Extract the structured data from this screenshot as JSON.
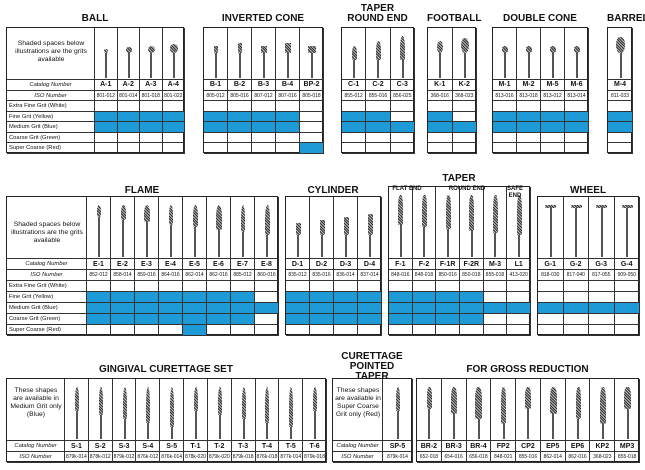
{
  "row_labels": {
    "catalog": "Catalog Number",
    "iso": "ISO Number",
    "grits": [
      "Extra Fine Grit (White)",
      "Fine Grit (Yellow)",
      "Medium Grit (Blue)",
      "Coarse Grit (Green)",
      "Super Coarse (Red)"
    ]
  },
  "notes": {
    "shaded": "Shaded spaces below illustrations are the grits available",
    "medium_only": "These shapes are available in Medium Grit only (Blue)",
    "super_coarse_only": "These shapes are available in Super Coarse Grit only (Red)"
  },
  "colors": {
    "shade": "#1e9bd7",
    "border": "#222222"
  },
  "groups": {
    "ball": {
      "title": "BALL",
      "codes": [
        "A-1",
        "A-2",
        "A-3",
        "A-4"
      ],
      "iso": [
        "801-012",
        "801-014",
        "801-018",
        "801-022"
      ],
      "grits": [
        [
          0,
          0,
          0,
          0
        ],
        [
          1,
          1,
          1,
          1
        ],
        [
          1,
          1,
          1,
          1
        ],
        [
          0,
          0,
          0,
          0
        ],
        [
          0,
          0,
          0,
          0
        ]
      ]
    },
    "inverted_cone": {
      "title": "INVERTED CONE",
      "codes": [
        "B-1",
        "B-2",
        "B-3",
        "B-4",
        "BP-2"
      ],
      "iso": [
        "805-012",
        "805-016",
        "807-012",
        "807-016",
        "805-018"
      ],
      "grits": [
        [
          0,
          0,
          0,
          0,
          0
        ],
        [
          1,
          1,
          1,
          1,
          0
        ],
        [
          1,
          1,
          1,
          1,
          0
        ],
        [
          0,
          0,
          0,
          0,
          0
        ],
        [
          0,
          0,
          0,
          0,
          1
        ]
      ]
    },
    "taper_round_end": {
      "title": "TAPER ROUND END",
      "codes": [
        "C-1",
        "C-2",
        "C-3"
      ],
      "iso": [
        "855-012",
        "855-016",
        "856-025"
      ],
      "grits": [
        [
          0,
          0,
          0
        ],
        [
          1,
          1,
          0
        ],
        [
          1,
          1,
          1
        ],
        [
          0,
          0,
          0
        ],
        [
          0,
          0,
          0
        ]
      ]
    },
    "football": {
      "title": "FOOTBALL",
      "codes": [
        "K-1",
        "K-2"
      ],
      "iso": [
        "368-016",
        "368-023"
      ],
      "grits": [
        [
          0,
          0
        ],
        [
          1,
          0
        ],
        [
          1,
          1
        ],
        [
          0,
          0
        ],
        [
          0,
          0
        ]
      ]
    },
    "double_cone": {
      "title": "DOUBLE CONE",
      "codes": [
        "M-1",
        "M-2",
        "M-5",
        "M-6"
      ],
      "iso": [
        "813-016",
        "813-018",
        "813-012",
        "813-014"
      ],
      "grits": [
        [
          0,
          0,
          0,
          0
        ],
        [
          1,
          1,
          1,
          1
        ],
        [
          1,
          1,
          1,
          1
        ],
        [
          0,
          0,
          0,
          0
        ],
        [
          0,
          0,
          0,
          0
        ]
      ]
    },
    "barrel": {
      "title": "BARREL",
      "codes": [
        "M-4"
      ],
      "iso": [
        "811-033"
      ],
      "grits": [
        [
          0
        ],
        [
          1
        ],
        [
          1
        ],
        [
          0
        ],
        [
          0
        ]
      ]
    },
    "flame": {
      "title": "FLAME",
      "codes": [
        "E-1",
        "E-2",
        "E-3",
        "E-4",
        "E-5",
        "E-6",
        "E-7",
        "E-8"
      ],
      "iso": [
        "852-012",
        "858-014",
        "859-016",
        "864-016",
        "862-014",
        "862-016",
        "885-012",
        "860-016"
      ],
      "grits": [
        [
          0,
          0,
          0,
          0,
          0,
          0,
          0,
          0
        ],
        [
          1,
          1,
          1,
          1,
          1,
          1,
          1,
          0
        ],
        [
          1,
          1,
          1,
          1,
          1,
          1,
          1,
          1
        ],
        [
          1,
          1,
          1,
          1,
          1,
          1,
          1,
          0
        ],
        [
          0,
          0,
          0,
          0,
          1,
          0,
          0,
          0
        ]
      ]
    },
    "cylinder": {
      "title": "CYLINDER",
      "codes": [
        "D-1",
        "D-2",
        "D-3",
        "D-4"
      ],
      "iso": [
        "835-012",
        "835-016",
        "836-014",
        "837-014"
      ],
      "grits": [
        [
          0,
          0,
          0,
          0
        ],
        [
          1,
          1,
          1,
          1
        ],
        [
          1,
          1,
          1,
          1
        ],
        [
          1,
          1,
          1,
          1
        ],
        [
          0,
          0,
          0,
          0
        ]
      ]
    },
    "taper": {
      "title": "TAPER",
      "sub_flat": "FLAT END",
      "sub_round": "ROUND END",
      "sub_safe": "SAFE END",
      "codes": [
        "F-1",
        "F-2",
        "F-1R",
        "F-2R",
        "M-3",
        "L1"
      ],
      "iso": [
        "848-016",
        "848-018",
        "850-016",
        "850-018",
        "855-018",
        "413-020"
      ],
      "grits": [
        [
          0,
          0,
          0,
          0,
          0,
          0
        ],
        [
          1,
          1,
          1,
          1,
          0,
          0
        ],
        [
          1,
          1,
          1,
          1,
          1,
          1
        ],
        [
          1,
          1,
          1,
          1,
          0,
          0
        ],
        [
          0,
          0,
          0,
          0,
          0,
          0
        ]
      ]
    },
    "wheel": {
      "title": "WHEEL",
      "codes": [
        "G-1",
        "G-2",
        "G-3",
        "G-4"
      ],
      "iso": [
        "818-030",
        "817-040",
        "817-055",
        "909-050"
      ],
      "grits": [
        [
          0,
          0,
          0,
          0
        ],
        [
          0,
          0,
          0,
          0
        ],
        [
          1,
          1,
          1,
          1
        ],
        [
          0,
          0,
          0,
          0
        ],
        [
          0,
          0,
          0,
          0
        ]
      ]
    },
    "gingival": {
      "title": "GINGIVAL CURETTAGE SET",
      "codes": [
        "S-1",
        "S-2",
        "S-3",
        "S-4",
        "S-5",
        "T-1",
        "T-2",
        "T-3",
        "T-4",
        "T-5",
        "T-6"
      ],
      "iso": [
        "879k-014",
        "878k-012",
        "879k-012",
        "876k-012",
        "876k-014",
        "878k-020",
        "879k-020",
        "879k-018",
        "876k-018",
        "877k-014",
        "879k-018"
      ]
    },
    "curettage": {
      "title": "CURETTAGE POINTED TAPER",
      "codes": [
        "SP-5"
      ],
      "iso": [
        "879k-014"
      ]
    },
    "gross": {
      "title": "FOR GROSS REDUCTION",
      "codes": [
        "BR-2",
        "BR-3",
        "BR-4",
        "FP2",
        "CP2",
        "EP5",
        "EP6",
        "KP2",
        "MP3"
      ],
      "iso": [
        "652-018",
        "654-016",
        "656-018",
        "848-021",
        "855-016",
        "862-014",
        "862-016",
        "368-023",
        "855-018"
      ]
    }
  }
}
